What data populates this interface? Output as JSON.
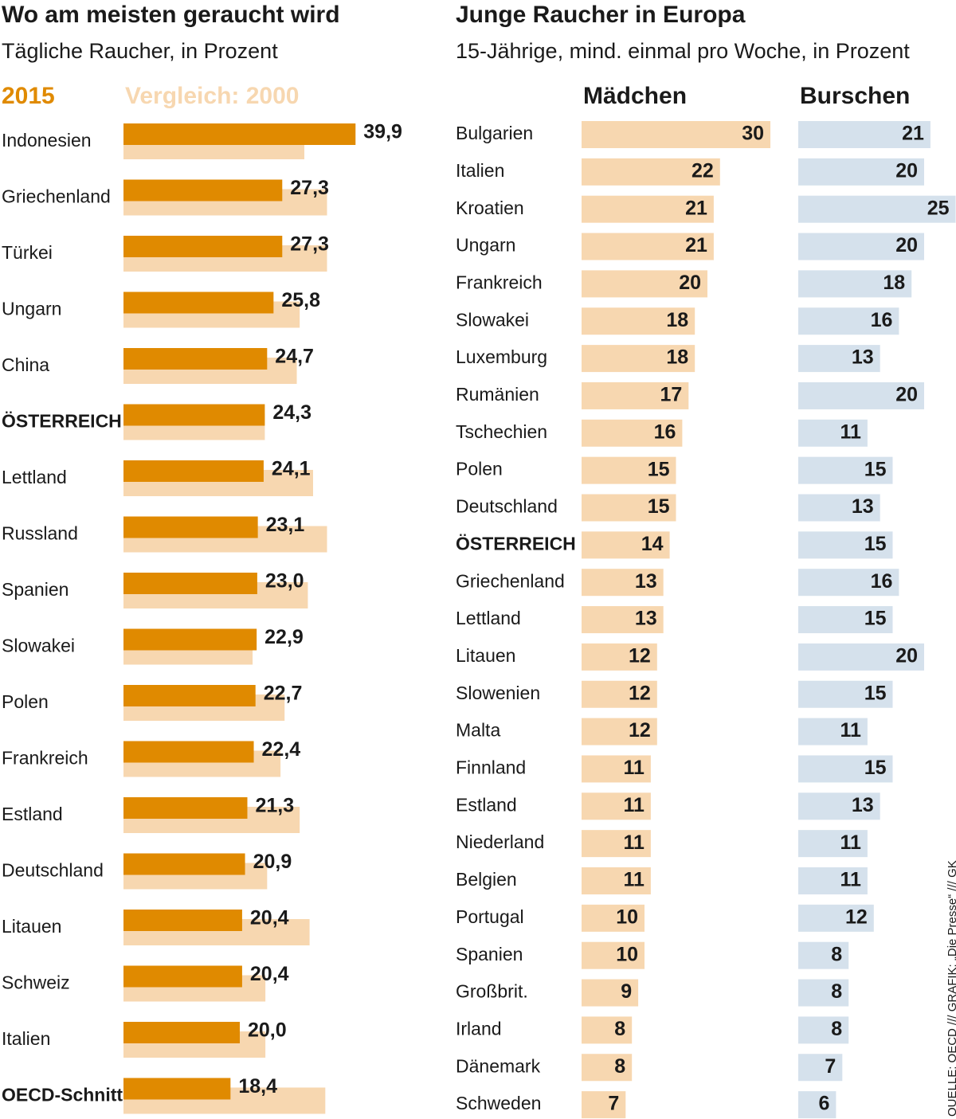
{
  "chart_data": [
    {
      "type": "bar",
      "title": "Wo am meisten geraucht wird",
      "subtitle": "Tägliche Raucher, in Prozent",
      "categories": [
        "Indonesien",
        "Griechenland",
        "Türkei",
        "Ungarn",
        "China",
        "ÖSTERREICH",
        "Lettland",
        "Russland",
        "Spanien",
        "Slowakei",
        "Polen",
        "Frankreich",
        "Estland",
        "Deutschland",
        "Litauen",
        "Schweiz",
        "Italien",
        "OECD-Schnitt"
      ],
      "series": [
        {
          "name": "2015",
          "color": "#e08a00",
          "values": [
            39.9,
            27.3,
            27.3,
            25.8,
            24.7,
            24.3,
            24.1,
            23.1,
            23.0,
            22.9,
            22.7,
            22.4,
            21.3,
            20.9,
            20.4,
            20.4,
            20.0,
            18.4
          ],
          "value_labels": [
            "39,9",
            "27,3",
            "27,3",
            "25,8",
            "24,7",
            "24,3",
            "24,1",
            "23,1",
            "23,0",
            "22,9",
            "22,7",
            "22,4",
            "21,3",
            "20,9",
            "20,4",
            "20,4",
            "20,0",
            "18,4"
          ]
        },
        {
          "name": "Vergleich: 2000",
          "color": "#f7d7b0",
          "values": [
            31.1,
            35.0,
            35.0,
            30.3,
            29.8,
            24.3,
            32.6,
            35.0,
            31.7,
            22.2,
            27.7,
            27.0,
            30.3,
            24.7,
            32.0,
            24.4,
            24.4,
            34.7
          ]
        }
      ],
      "xlim": [
        0,
        40
      ],
      "bold_rows": [
        5,
        17
      ]
    },
    {
      "type": "bar",
      "title": "Junge Raucher in Europa",
      "subtitle": "15-Jährige, mind. einmal pro Woche, in Prozent",
      "categories": [
        "Bulgarien",
        "Italien",
        "Kroatien",
        "Ungarn",
        "Frankreich",
        "Slowakei",
        "Luxemburg",
        "Rumänien",
        "Tschechien",
        "Polen",
        "Deutschland",
        "ÖSTERREICH",
        "Griechenland",
        "Lettland",
        "Litauen",
        "Slowenien",
        "Malta",
        "Finnland",
        "Estland",
        "Niederland",
        "Belgien",
        "Portugal",
        "Spanien",
        "Großbrit.",
        "Irland",
        "Dänemark",
        "Schweden"
      ],
      "series": [
        {
          "name": "Mädchen",
          "color": "#f7d7b0",
          "values": [
            30,
            22,
            21,
            21,
            20,
            18,
            18,
            17,
            16,
            15,
            15,
            14,
            13,
            13,
            12,
            12,
            12,
            11,
            11,
            11,
            11,
            10,
            10,
            9,
            8,
            8,
            7
          ]
        },
        {
          "name": "Burschen",
          "color": "#d5e1ec",
          "values": [
            21,
            20,
            25,
            20,
            18,
            16,
            13,
            20,
            11,
            15,
            13,
            15,
            16,
            15,
            20,
            15,
            11,
            15,
            13,
            11,
            11,
            12,
            8,
            8,
            8,
            7,
            6
          ]
        }
      ],
      "xlim": [
        0,
        30
      ],
      "bold_rows": [
        11
      ]
    }
  ],
  "source": "QUELLE: OECD /// GRAFIK: „Die Presse“ /// GK"
}
